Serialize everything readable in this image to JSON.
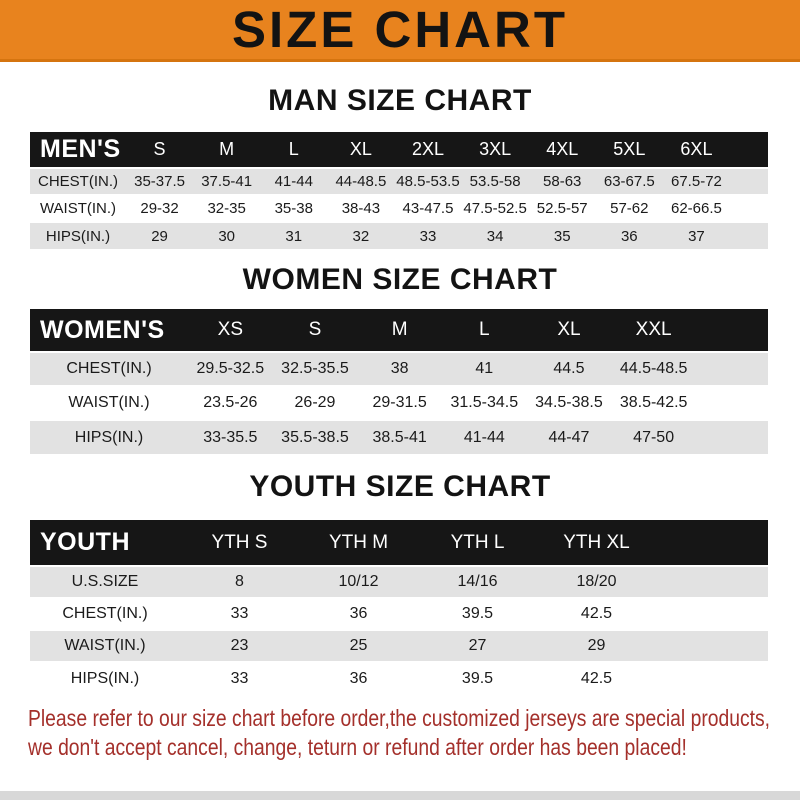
{
  "banner": {
    "title": "SIZE CHART",
    "bg_color": "#E8831E",
    "text_color": "#131313"
  },
  "sections": [
    {
      "title": "MAN SIZE CHART",
      "header_label": "MEN'S",
      "columns": [
        "S",
        "M",
        "L",
        "XL",
        "2XL",
        "3XL",
        "4XL",
        "5XL",
        "6XL"
      ],
      "rows": [
        {
          "label": "CHEST(IN.)",
          "values": [
            "35-37.5",
            "37.5-41",
            "41-44",
            "44-48.5",
            "48.5-53.5",
            "53.5-58",
            "58-63",
            "63-67.5",
            "67.5-72"
          ]
        },
        {
          "label": "WAIST(IN.)",
          "values": [
            "29-32",
            "32-35",
            "35-38",
            "38-43",
            "43-47.5",
            "47.5-52.5",
            "52.5-57",
            "57-62",
            "62-66.5"
          ]
        },
        {
          "label": "HIPS(IN.)",
          "values": [
            "29",
            "30",
            "31",
            "32",
            "33",
            "34",
            "35",
            "36",
            "37"
          ]
        }
      ]
    },
    {
      "title": "WOMEN SIZE CHART",
      "header_label": "WOMEN'S",
      "columns": [
        "XS",
        "S",
        "M",
        "L",
        "XL",
        "XXL"
      ],
      "rows": [
        {
          "label": "CHEST(IN.)",
          "values": [
            "29.5-32.5",
            "32.5-35.5",
            "38",
            "41",
            "44.5",
            "44.5-48.5"
          ]
        },
        {
          "label": "WAIST(IN.)",
          "values": [
            "23.5-26",
            "26-29",
            "29-31.5",
            "31.5-34.5",
            "34.5-38.5",
            "38.5-42.5"
          ]
        },
        {
          "label": "HIPS(IN.)",
          "values": [
            "33-35.5",
            "35.5-38.5",
            "38.5-41",
            "41-44",
            "44-47",
            "47-50"
          ]
        }
      ]
    },
    {
      "title": "YOUTH SIZE CHART",
      "header_label": "YOUTH",
      "columns": [
        "YTH S",
        "YTH M",
        "YTH L",
        "YTH XL"
      ],
      "rows": [
        {
          "label": "U.S.SIZE",
          "values": [
            "8",
            "10/12",
            "14/16",
            "18/20"
          ]
        },
        {
          "label": "CHEST(IN.)",
          "values": [
            "33",
            "36",
            "39.5",
            "42.5"
          ]
        },
        {
          "label": "WAIST(IN.)",
          "values": [
            "23",
            "25",
            "27",
            "29"
          ]
        },
        {
          "label": "HIPS(IN.)",
          "values": [
            "33",
            "36",
            "39.5",
            "42.5"
          ]
        }
      ]
    }
  ],
  "disclaimer": {
    "line1": "Please refer to our size chart before order,the customized jerseys are special products,",
    "line2": "we don't accept cancel, change, teturn or refund after order has been placed!",
    "color": "#A4302B"
  }
}
